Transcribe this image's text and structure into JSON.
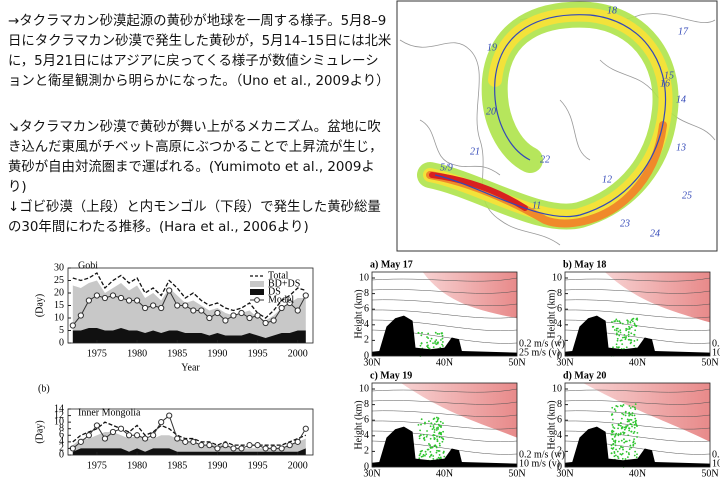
{
  "text": {
    "paragraphs": [
      "→タクラマカン砂漠起源の黄砂が地球を一周する様子。5月8–9日にタクラマカン砂漠で発生した黄砂が，5月14–15日には北米に，5月21日にはアジアに戻ってくる様子が数値シミュレーションと衛星観測から明らかになった。（Uno et al., 2009より）",
      "↘タクラマカン砂漠で黄砂が舞い上がるメカニズム。盆地に吹き込んだ東風がチベット高原にぶつかることで上昇流が生じ，黄砂が自由対流圏まで運ばれる。(Yumimoto et al., 2009より)",
      "↓ゴビ砂漠（上段）と内モンゴル（下段）で発生した黄砂総量の30年間にわたる推移。(Hara et al., 2006より)"
    ]
  },
  "map": {
    "labels": [
      "5/9",
      "11",
      "12",
      "13",
      "14",
      "15",
      "16",
      "17",
      "18",
      "19",
      "20",
      "21",
      "22",
      "23",
      "24",
      "25"
    ]
  },
  "timeseries": {
    "x_label": "Year",
    "y_label": "(Day)",
    "legend": [
      "Total",
      "BD+DS",
      "DS",
      "Model"
    ],
    "xlim": [
      1971.4,
      2001.9
    ],
    "xticks": [
      1975,
      1980,
      1985,
      1990,
      1995,
      2000
    ],
    "years": [
      1972,
      1973,
      1974,
      1975,
      1976,
      1977,
      1978,
      1979,
      1980,
      1981,
      1982,
      1983,
      1984,
      1985,
      1986,
      1987,
      1988,
      1989,
      1990,
      1991,
      1992,
      1993,
      1994,
      1995,
      1996,
      1997,
      1998,
      1999,
      2000,
      2001
    ],
    "panels": [
      {
        "title": "Gobi",
        "ylim": [
          0,
          30
        ],
        "yticks": [
          0,
          5,
          10,
          15,
          20,
          25,
          30
        ],
        "total": [
          26,
          25,
          26,
          28,
          22,
          25,
          27,
          24,
          26,
          20,
          22,
          19,
          25,
          22,
          18,
          20,
          17,
          15,
          16,
          14,
          13,
          14,
          16,
          12,
          10,
          13,
          17,
          19,
          22,
          21
        ],
        "bd_ds": [
          23,
          22,
          24,
          25,
          20,
          22,
          24,
          21,
          23,
          18,
          20,
          17,
          22,
          19,
          16,
          17,
          15,
          13,
          14,
          12,
          11,
          12,
          13,
          10,
          9,
          11,
          14,
          16,
          18,
          18
        ],
        "ds": [
          5,
          5,
          6,
          6,
          5,
          5,
          6,
          5,
          5,
          4,
          5,
          4,
          5,
          5,
          4,
          4,
          4,
          3,
          4,
          3,
          3,
          3,
          4,
          3,
          2,
          3,
          4,
          4,
          5,
          5
        ],
        "model": [
          7,
          11,
          17,
          19,
          18,
          19,
          18,
          17,
          17,
          14,
          15,
          14,
          21,
          15,
          15,
          13,
          13,
          10,
          12,
          9,
          11,
          12,
          10,
          11,
          8,
          9,
          14,
          16,
          13,
          19
        ]
      },
      {
        "label": "(b)",
        "title": "Inner Mongolia",
        "ylim": [
          0,
          14
        ],
        "yticks": [
          0,
          2,
          4,
          6,
          8,
          10,
          12,
          14
        ],
        "total": [
          4,
          6,
          7,
          8,
          10,
          9,
          8,
          7,
          9,
          6,
          7,
          9,
          8,
          6,
          5,
          5,
          4,
          4,
          3,
          4,
          3,
          3,
          3,
          3,
          3,
          3,
          3,
          4,
          5,
          6
        ],
        "bd_ds": [
          3,
          5,
          5,
          6,
          7,
          7,
          6,
          5,
          6,
          5,
          5,
          6,
          6,
          5,
          4,
          4,
          3,
          3,
          3,
          3,
          2,
          2,
          2,
          2,
          2,
          2,
          2,
          3,
          4,
          5
        ],
        "ds": [
          1,
          2,
          2,
          2,
          2,
          2,
          2,
          1,
          2,
          1,
          2,
          2,
          2,
          1,
          1,
          1,
          1,
          1,
          1,
          1,
          1,
          1,
          1,
          1,
          1,
          1,
          1,
          1,
          1,
          2
        ],
        "model": [
          2,
          4,
          6,
          9,
          5,
          7,
          8,
          6,
          6,
          5,
          6,
          10,
          12,
          5,
          4,
          4,
          3,
          3,
          2,
          3,
          2,
          2,
          3,
          3,
          2,
          2,
          2,
          3,
          4,
          8
        ]
      }
    ]
  },
  "sections": {
    "y_label": "Height (km)",
    "yticks": [
      0,
      2,
      4,
      6,
      8,
      10
    ],
    "xticks": [
      "30N",
      "40N",
      "50N"
    ],
    "w_label": "0.2 m/s (w)",
    "panels": [
      {
        "title": "a) May 17",
        "v_label": "25 m/s (v)"
      },
      {
        "title": "b) May 18",
        "v_label": "10 m/s (v)"
      },
      {
        "title": "c) May 19",
        "v_label": "10 m/s (v)"
      },
      {
        "title": "d) May 20",
        "v_label": "10 m/s (v)"
      }
    ]
  }
}
